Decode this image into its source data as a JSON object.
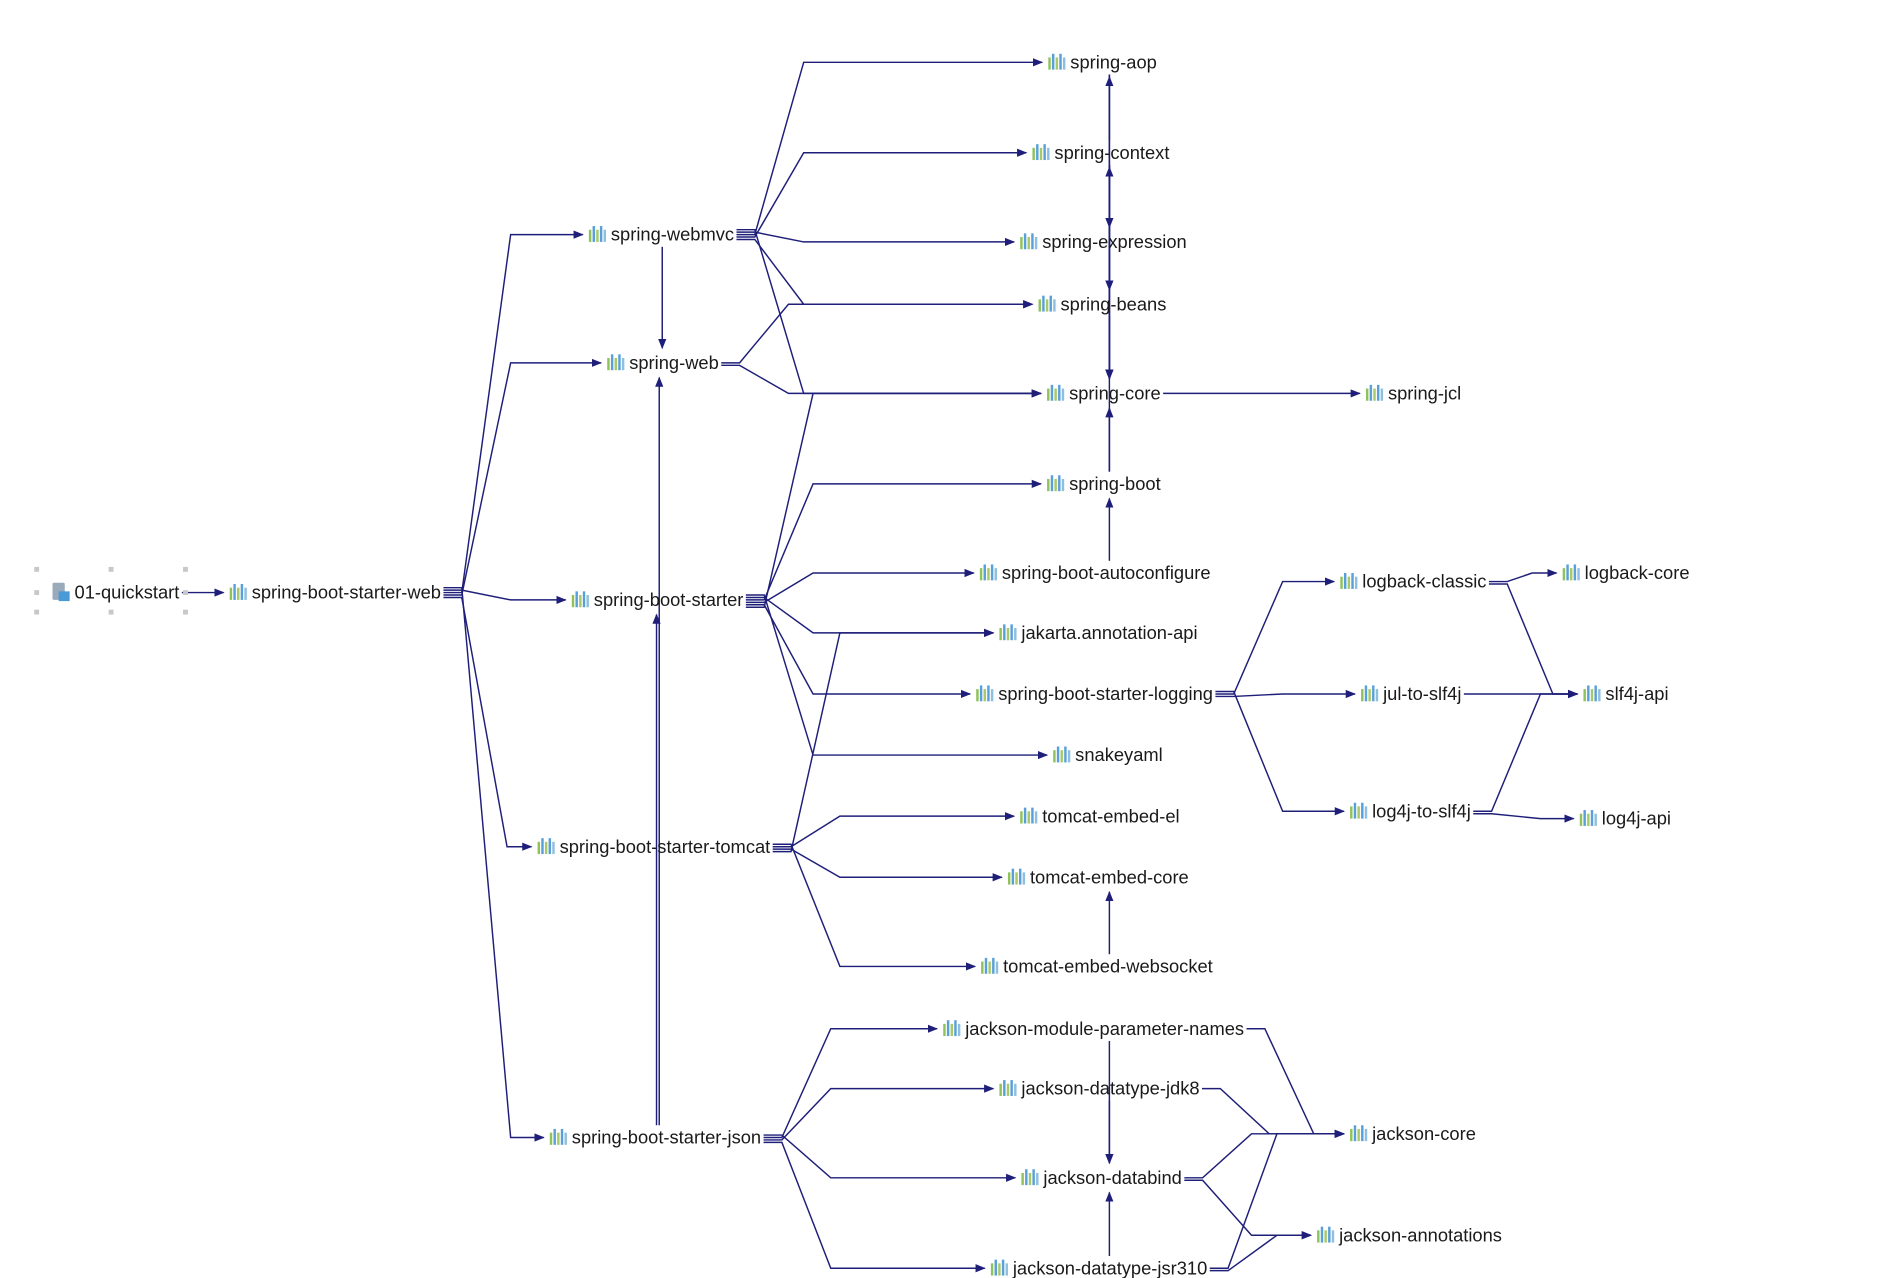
{
  "diagram": {
    "edge_color": "#1f1f7a",
    "root": "01-quickstart",
    "nodes": [
      {
        "id": "01-quickstart",
        "icon": "maven-module-icon",
        "selected": true
      },
      {
        "id": "spring-boot-starter-web",
        "icon": "jar-library-icon"
      },
      {
        "id": "spring-webmvc",
        "icon": "jar-library-icon"
      },
      {
        "id": "spring-web",
        "icon": "jar-library-icon"
      },
      {
        "id": "spring-boot-starter",
        "icon": "jar-library-icon"
      },
      {
        "id": "spring-boot-starter-tomcat",
        "icon": "jar-library-icon"
      },
      {
        "id": "spring-boot-starter-json",
        "icon": "jar-library-icon"
      },
      {
        "id": "spring-aop",
        "icon": "jar-library-icon"
      },
      {
        "id": "spring-context",
        "icon": "jar-library-icon"
      },
      {
        "id": "spring-expression",
        "icon": "jar-library-icon"
      },
      {
        "id": "spring-beans",
        "icon": "jar-library-icon"
      },
      {
        "id": "spring-core",
        "icon": "jar-library-icon"
      },
      {
        "id": "spring-jcl",
        "icon": "jar-library-icon"
      },
      {
        "id": "spring-boot",
        "icon": "jar-library-icon"
      },
      {
        "id": "spring-boot-autoconfigure",
        "icon": "jar-library-icon"
      },
      {
        "id": "jakarta.annotation-api",
        "icon": "jar-library-icon"
      },
      {
        "id": "spring-boot-starter-logging",
        "icon": "jar-library-icon"
      },
      {
        "id": "snakeyaml",
        "icon": "jar-library-icon"
      },
      {
        "id": "tomcat-embed-el",
        "icon": "jar-library-icon"
      },
      {
        "id": "tomcat-embed-core",
        "icon": "jar-library-icon"
      },
      {
        "id": "tomcat-embed-websocket",
        "icon": "jar-library-icon"
      },
      {
        "id": "jackson-module-parameter-names",
        "icon": "jar-library-icon"
      },
      {
        "id": "jackson-datatype-jdk8",
        "icon": "jar-library-icon"
      },
      {
        "id": "jackson-databind",
        "icon": "jar-library-icon"
      },
      {
        "id": "jackson-datatype-jsr310",
        "icon": "jar-library-icon"
      },
      {
        "id": "logback-classic",
        "icon": "jar-library-icon"
      },
      {
        "id": "logback-core",
        "icon": "jar-library-icon"
      },
      {
        "id": "jul-to-slf4j",
        "icon": "jar-library-icon"
      },
      {
        "id": "slf4j-api",
        "icon": "jar-library-icon"
      },
      {
        "id": "log4j-to-slf4j",
        "icon": "jar-library-icon"
      },
      {
        "id": "log4j-api",
        "icon": "jar-library-icon"
      },
      {
        "id": "jackson-core",
        "icon": "jar-library-icon"
      },
      {
        "id": "jackson-annotations",
        "icon": "jar-library-icon"
      }
    ],
    "edges": [
      [
        "01-quickstart",
        "spring-boot-starter-web"
      ],
      [
        "spring-boot-starter-web",
        "spring-webmvc"
      ],
      [
        "spring-boot-starter-web",
        "spring-web"
      ],
      [
        "spring-boot-starter-web",
        "spring-boot-starter"
      ],
      [
        "spring-boot-starter-web",
        "spring-boot-starter-tomcat"
      ],
      [
        "spring-boot-starter-web",
        "spring-boot-starter-json"
      ],
      [
        "spring-webmvc",
        "spring-web"
      ],
      [
        "spring-webmvc",
        "spring-aop"
      ],
      [
        "spring-webmvc",
        "spring-context"
      ],
      [
        "spring-webmvc",
        "spring-expression"
      ],
      [
        "spring-webmvc",
        "spring-beans"
      ],
      [
        "spring-webmvc",
        "spring-core"
      ],
      [
        "spring-web",
        "spring-beans"
      ],
      [
        "spring-web",
        "spring-core"
      ],
      [
        "spring-context",
        "spring-aop"
      ],
      [
        "spring-context",
        "spring-expression"
      ],
      [
        "spring-context",
        "spring-beans"
      ],
      [
        "spring-context",
        "spring-core"
      ],
      [
        "spring-aop",
        "spring-beans"
      ],
      [
        "spring-aop",
        "spring-core"
      ],
      [
        "spring-expression",
        "spring-core"
      ],
      [
        "spring-beans",
        "spring-core"
      ],
      [
        "spring-core",
        "spring-jcl"
      ],
      [
        "spring-boot",
        "spring-core"
      ],
      [
        "spring-boot",
        "spring-context"
      ],
      [
        "spring-boot-starter",
        "spring-boot"
      ],
      [
        "spring-boot-starter",
        "spring-boot-autoconfigure"
      ],
      [
        "spring-boot-starter",
        "jakarta.annotation-api"
      ],
      [
        "spring-boot-starter",
        "spring-boot-starter-logging"
      ],
      [
        "spring-boot-starter",
        "snakeyaml"
      ],
      [
        "spring-boot-starter",
        "spring-core"
      ],
      [
        "spring-boot-autoconfigure",
        "spring-boot"
      ],
      [
        "spring-boot-starter-logging",
        "logback-classic"
      ],
      [
        "spring-boot-starter-logging",
        "jul-to-slf4j"
      ],
      [
        "spring-boot-starter-logging",
        "log4j-to-slf4j"
      ],
      [
        "logback-classic",
        "logback-core"
      ],
      [
        "logback-classic",
        "slf4j-api"
      ],
      [
        "jul-to-slf4j",
        "slf4j-api"
      ],
      [
        "log4j-to-slf4j",
        "slf4j-api"
      ],
      [
        "log4j-to-slf4j",
        "log4j-api"
      ],
      [
        "spring-boot-starter-tomcat",
        "tomcat-embed-el"
      ],
      [
        "spring-boot-starter-tomcat",
        "tomcat-embed-core"
      ],
      [
        "spring-boot-starter-tomcat",
        "tomcat-embed-websocket"
      ],
      [
        "spring-boot-starter-tomcat",
        "jakarta.annotation-api"
      ],
      [
        "tomcat-embed-websocket",
        "tomcat-embed-core"
      ],
      [
        "spring-boot-starter-json",
        "spring-web"
      ],
      [
        "spring-boot-starter-json",
        "spring-boot-starter"
      ],
      [
        "spring-boot-starter-json",
        "jackson-module-parameter-names"
      ],
      [
        "spring-boot-starter-json",
        "jackson-datatype-jdk8"
      ],
      [
        "spring-boot-starter-json",
        "jackson-databind"
      ],
      [
        "spring-boot-starter-json",
        "jackson-datatype-jsr310"
      ],
      [
        "jackson-module-parameter-names",
        "jackson-core"
      ],
      [
        "jackson-module-parameter-names",
        "jackson-databind"
      ],
      [
        "jackson-datatype-jdk8",
        "jackson-core"
      ],
      [
        "jackson-datatype-jdk8",
        "jackson-databind"
      ],
      [
        "jackson-databind",
        "jackson-core"
      ],
      [
        "jackson-databind",
        "jackson-annotations"
      ],
      [
        "jackson-datatype-jsr310",
        "jackson-core"
      ],
      [
        "jackson-datatype-jsr310",
        "jackson-annotations"
      ],
      [
        "jackson-datatype-jsr310",
        "jackson-databind"
      ]
    ]
  }
}
